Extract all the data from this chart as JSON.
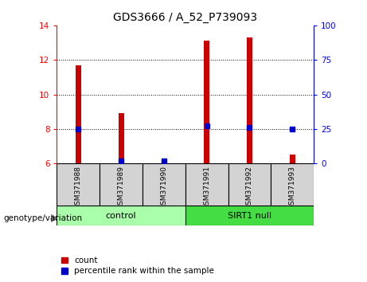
{
  "title": "GDS3666 / A_52_P739093",
  "samples": [
    "GSM371988",
    "GSM371989",
    "GSM371990",
    "GSM371991",
    "GSM371992",
    "GSM371993"
  ],
  "red_values": [
    11.7,
    8.9,
    6.0,
    13.1,
    13.3,
    6.5
  ],
  "blue_values": [
    25.0,
    2.0,
    2.0,
    27.0,
    26.0,
    25.0
  ],
  "y_min": 6,
  "y_max": 14,
  "y_ticks_red": [
    6,
    8,
    10,
    12,
    14
  ],
  "y_ticks_blue": [
    0,
    25,
    50,
    75,
    100
  ],
  "groups": [
    {
      "label": "control",
      "start": 0,
      "end": 3,
      "color": "#aaffaa"
    },
    {
      "label": "SIRT1 null",
      "start": 3,
      "end": 6,
      "color": "#44dd44"
    }
  ],
  "legend_red_label": "count",
  "legend_blue_label": "percentile rank within the sample",
  "genotype_label": "genotype/variation",
  "red_color": "#cc0000",
  "blue_color": "#0000cc",
  "bar_width": 0.13,
  "blue_marker_size": 5,
  "sample_bg": "#d3d3d3",
  "grid_lines": [
    8,
    10,
    12
  ]
}
